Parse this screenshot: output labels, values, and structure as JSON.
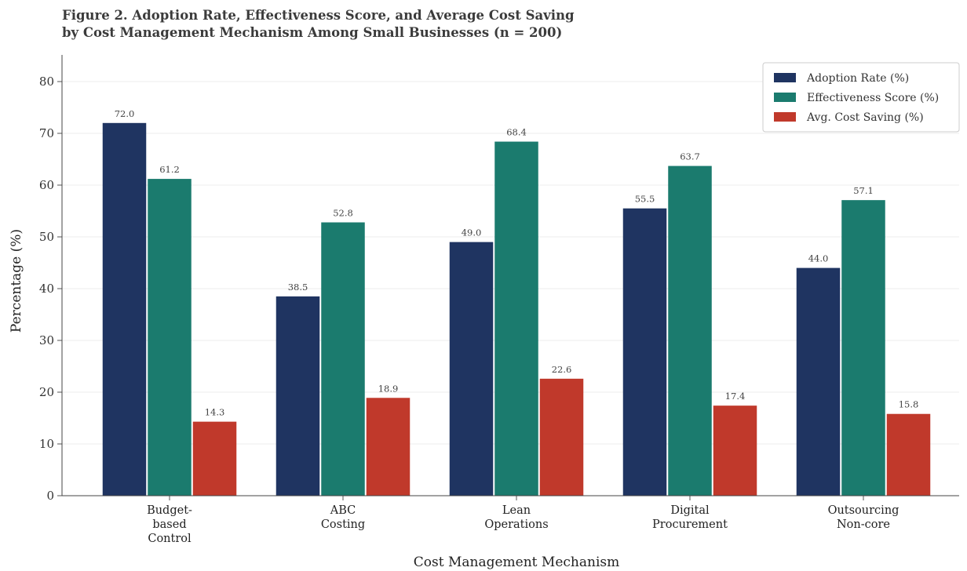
{
  "chart_data": {
    "type": "bar",
    "title": [
      "Figure 2. Adoption Rate, Effectiveness Score, and Average Cost Saving",
      "by Cost Management Mechanism Among Small Businesses (n = 200)"
    ],
    "xlabel": "Cost Management Mechanism",
    "ylabel": "Percentage (%)",
    "ylim": [
      0,
      85
    ],
    "yticks": [
      0,
      10,
      20,
      30,
      40,
      50,
      60,
      70,
      80
    ],
    "grid": "horizontal",
    "legend_position": "top-right",
    "categories": [
      [
        "Budget-",
        "based",
        "Control"
      ],
      [
        "ABC",
        "Costing"
      ],
      [
        "Lean",
        "Operations"
      ],
      [
        "Digital",
        "Procurement"
      ],
      [
        "Outsourcing",
        "Non-core"
      ]
    ],
    "series": [
      {
        "name": "Adoption Rate (%)",
        "color": "#1f3461",
        "values": [
          72.0,
          38.5,
          49.0,
          55.5,
          44.0
        ]
      },
      {
        "name": "Effectiveness Score (%)",
        "color": "#1b7b6e",
        "values": [
          61.2,
          52.8,
          68.4,
          63.7,
          57.1
        ]
      },
      {
        "name": "Avg. Cost Saving (%)",
        "color": "#c0392b",
        "values": [
          14.3,
          18.9,
          22.6,
          17.4,
          15.8
        ]
      }
    ]
  }
}
